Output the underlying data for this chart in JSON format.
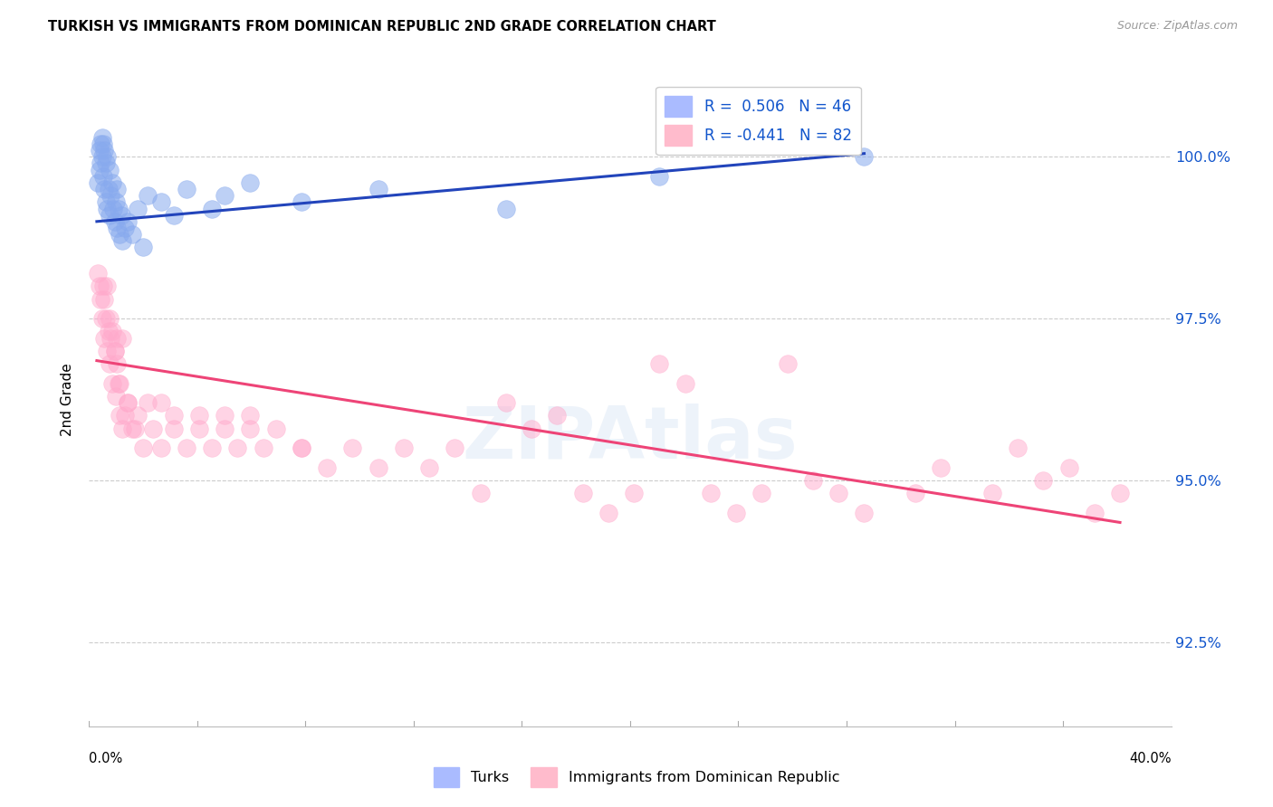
{
  "title": "TURKISH VS IMMIGRANTS FROM DOMINICAN REPUBLIC 2ND GRADE CORRELATION CHART",
  "source": "Source: ZipAtlas.com",
  "ylabel": "2nd Grade",
  "yticks": [
    92.5,
    95.0,
    97.5,
    100.0
  ],
  "ytick_labels": [
    "92.5%",
    "95.0%",
    "97.5%",
    "100.0%"
  ],
  "ymin": 91.2,
  "ymax": 101.3,
  "xmin": -0.3,
  "xmax": 42.0,
  "legend_label_turks": "Turks",
  "legend_label_dr": "Immigrants from Dominican Republic",
  "blue_color": "#88aaee",
  "pink_color": "#ffaacc",
  "blue_line_color": "#2244bb",
  "pink_line_color": "#ee4477",
  "blue_scatter_x": [
    0.05,
    0.1,
    0.1,
    0.15,
    0.15,
    0.2,
    0.2,
    0.25,
    0.25,
    0.3,
    0.3,
    0.35,
    0.35,
    0.4,
    0.4,
    0.45,
    0.5,
    0.5,
    0.55,
    0.6,
    0.65,
    0.7,
    0.75,
    0.8,
    0.8,
    0.85,
    0.9,
    0.95,
    1.0,
    1.1,
    1.2,
    1.4,
    1.6,
    1.8,
    2.0,
    2.5,
    3.0,
    3.5,
    4.5,
    5.0,
    6.0,
    8.0,
    11.0,
    16.0,
    22.0,
    30.0
  ],
  "blue_scatter_y": [
    99.6,
    100.1,
    99.8,
    100.2,
    99.9,
    100.3,
    100.0,
    100.2,
    99.7,
    100.1,
    99.5,
    99.9,
    99.3,
    100.0,
    99.2,
    99.5,
    99.8,
    99.1,
    99.4,
    99.6,
    99.2,
    99.0,
    99.3,
    98.9,
    99.5,
    99.2,
    98.8,
    99.1,
    98.7,
    98.9,
    99.0,
    98.8,
    99.2,
    98.6,
    99.4,
    99.3,
    99.1,
    99.5,
    99.2,
    99.4,
    99.6,
    99.3,
    99.5,
    99.2,
    99.7,
    100.0
  ],
  "pink_scatter_x": [
    0.05,
    0.1,
    0.15,
    0.2,
    0.25,
    0.3,
    0.35,
    0.4,
    0.45,
    0.5,
    0.55,
    0.6,
    0.7,
    0.75,
    0.8,
    0.85,
    0.9,
    1.0,
    1.1,
    1.2,
    1.4,
    1.6,
    1.8,
    2.0,
    2.2,
    2.5,
    3.0,
    3.5,
    4.0,
    4.5,
    5.0,
    5.5,
    6.0,
    6.5,
    7.0,
    8.0,
    9.0,
    10.0,
    11.0,
    12.0,
    13.0,
    14.0,
    15.0,
    16.0,
    17.0,
    18.0,
    19.0,
    20.0,
    21.0,
    22.0,
    23.0,
    24.0,
    25.0,
    26.0,
    27.0,
    28.0,
    29.0,
    30.0,
    32.0,
    33.0,
    35.0,
    36.0,
    37.0,
    38.0,
    39.0,
    40.0,
    0.3,
    0.4,
    0.5,
    0.6,
    0.7,
    0.8,
    0.9,
    1.0,
    1.2,
    1.5,
    2.5,
    3.0,
    4.0,
    5.0,
    6.0,
    8.0
  ],
  "pink_scatter_y": [
    98.2,
    98.0,
    97.8,
    97.5,
    98.0,
    97.2,
    97.5,
    97.0,
    97.3,
    96.8,
    97.2,
    96.5,
    97.0,
    96.3,
    96.8,
    96.5,
    96.0,
    97.2,
    96.0,
    96.2,
    95.8,
    96.0,
    95.5,
    96.2,
    95.8,
    95.5,
    96.0,
    95.5,
    95.8,
    95.5,
    96.0,
    95.5,
    95.8,
    95.5,
    95.8,
    95.5,
    95.2,
    95.5,
    95.2,
    95.5,
    95.2,
    95.5,
    94.8,
    96.2,
    95.8,
    96.0,
    94.8,
    94.5,
    94.8,
    96.8,
    96.5,
    94.8,
    94.5,
    94.8,
    96.8,
    95.0,
    94.8,
    94.5,
    94.8,
    95.2,
    94.8,
    95.5,
    95.0,
    95.2,
    94.5,
    94.8,
    97.8,
    98.0,
    97.5,
    97.3,
    97.0,
    97.2,
    96.5,
    95.8,
    96.2,
    95.8,
    96.2,
    95.8,
    96.0,
    95.8,
    96.0,
    95.5
  ],
  "blue_line_x0": 0.0,
  "blue_line_x1": 30.0,
  "blue_line_y0": 99.0,
  "blue_line_y1": 100.05,
  "pink_line_x0": 0.0,
  "pink_line_x1": 40.0,
  "pink_line_y0": 96.85,
  "pink_line_y1": 94.35,
  "r_blue": "R = ",
  "r_blue_val": " 0.506",
  "n_blue": "  N = ",
  "n_blue_val": "46",
  "r_pink": "R = ",
  "r_pink_val": "-0.441",
  "n_pink": "  N = ",
  "n_pink_val": "82"
}
